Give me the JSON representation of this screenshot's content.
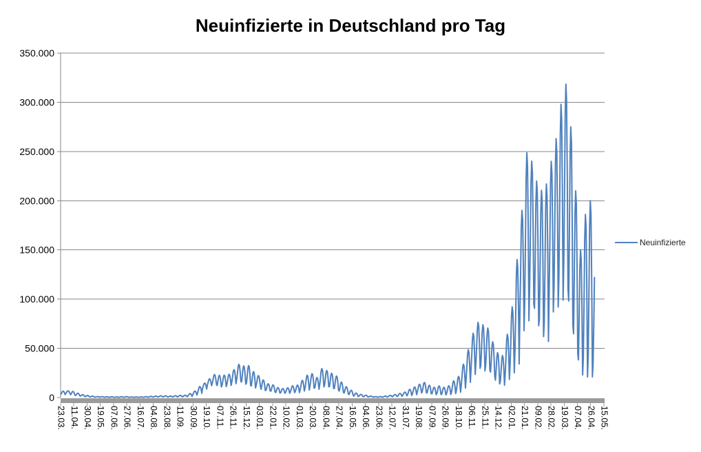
{
  "colors": {
    "background": "#FFFFFF",
    "series_line": "#4F81BD",
    "gridline": "#878787",
    "axis_line": "#878787",
    "axis_band": "#9B9B9B",
    "text": "#000000",
    "legend_text": "#1F1F1F"
  },
  "chart_data": {
    "type": "line",
    "title": "Neuinfizierte in Deutschland pro Tag",
    "legend": {
      "label": "Neuinfizierte",
      "position": "right"
    },
    "grid": "horizontal gridlines every 50.000, no plot border",
    "y_axis": {
      "min": 0,
      "max": 350000,
      "ticks": [
        {
          "value": 0,
          "label": "0"
        },
        {
          "value": 50000,
          "label": "50.000"
        },
        {
          "value": 100000,
          "label": "100.000"
        },
        {
          "value": 150000,
          "label": "150.000"
        },
        {
          "value": 200000,
          "label": "200.000"
        },
        {
          "value": 250000,
          "label": "250.000"
        },
        {
          "value": 300000,
          "label": "300.000"
        },
        {
          "value": 350000,
          "label": "350.000"
        }
      ]
    },
    "x_axis": {
      "tick_interval_days": 19,
      "tick_labels": [
        "23.03.",
        "11.04.",
        "30.04.",
        "19.05.",
        "07.06.",
        "27.06.",
        "16.07.",
        "04.08.",
        "23.08.",
        "11.09.",
        "30.09.",
        "19.10.",
        "07.11.",
        "26.11.",
        "15.12.",
        "03.01.",
        "22.01.",
        "10.02.",
        "01.03.",
        "20.03.",
        "08.04.",
        "27.04.",
        "16.05.",
        "04.06.",
        "23.06.",
        "12.07.",
        "31.07.",
        "19.08.",
        "07.09.",
        "26.09.",
        "18.10.",
        "06.11.",
        "25.11.",
        "14.12.",
        "02.01.",
        "21.01.",
        "09.02.",
        "28.02.",
        "19.03.",
        "07.04.",
        "26.04.",
        "15.05."
      ]
    },
    "series": [
      {
        "name": "Neuinfizierte",
        "color": "#4F81BD",
        "encoding": "weekly [high,low] envelope in thousands (weeks starting Mon 23.03.2020); daily value = low + (high-low) * weekday_weights[day_of_week], estimated from the plotted curve",
        "weekday_weights": [
          0.12,
          0.45,
          0.85,
          1.0,
          0.92,
          0.55,
          0.0
        ],
        "daily_points_drawn": 766,
        "weekly_high_low_thousands": [
          [
            6.5,
            3.0
          ],
          [
            6.8,
            3.9
          ],
          [
            6.2,
            2.5
          ],
          [
            4.4,
            1.8
          ],
          [
            2.9,
            1.3
          ],
          [
            2.1,
            0.7
          ],
          [
            1.4,
            0.5
          ],
          [
            1.0,
            0.4
          ],
          [
            0.9,
            0.35
          ],
          [
            0.75,
            0.3
          ],
          [
            0.8,
            0.3
          ],
          [
            0.6,
            0.2
          ],
          [
            0.8,
            0.3
          ],
          [
            0.9,
            0.3
          ],
          [
            0.6,
            0.25
          ],
          [
            0.55,
            0.2
          ],
          [
            0.65,
            0.25
          ],
          [
            0.9,
            0.3
          ],
          [
            1.2,
            0.4
          ],
          [
            1.5,
            0.5
          ],
          [
            1.8,
            0.6
          ],
          [
            1.8,
            0.6
          ],
          [
            1.6,
            0.5
          ],
          [
            1.9,
            0.6
          ],
          [
            2.2,
            0.7
          ],
          [
            2.4,
            0.8
          ],
          [
            4.0,
            1.2
          ],
          [
            6.6,
            2.5
          ],
          [
            11.2,
            4.3
          ],
          [
            14.7,
            8.7
          ],
          [
            19.1,
            12.1
          ],
          [
            23.4,
            13.3
          ],
          [
            22.6,
            10.8
          ],
          [
            22.8,
            11.1
          ],
          [
            23.7,
            12.3
          ],
          [
            28.4,
            14.1
          ],
          [
            33.8,
            16.4
          ],
          [
            32.2,
            13.6
          ],
          [
            32.5,
            12.3
          ],
          [
            26.4,
            9.8
          ],
          [
            22.3,
            11.3
          ],
          [
            17.9,
            7.1
          ],
          [
            14.0,
            6.7
          ],
          [
            12.9,
            5.6
          ],
          [
            10.2,
            4.5
          ],
          [
            9.1,
            4.4
          ],
          [
            9.9,
            4.4
          ],
          [
            11.9,
            5.0
          ],
          [
            12.7,
            5.1
          ],
          [
            17.5,
            6.6
          ],
          [
            22.7,
            7.7
          ],
          [
            24.3,
            9.5
          ],
          [
            20.4,
            8.5
          ],
          [
            29.4,
            10.8
          ],
          [
            27.5,
            10.9
          ],
          [
            24.7,
            9.2
          ],
          [
            21.9,
            7.5
          ],
          [
            15.7,
            5.4
          ],
          [
            11.0,
            3.7
          ],
          [
            7.4,
            2.4
          ],
          [
            4.6,
            1.1
          ],
          [
            3.2,
            1.0
          ],
          [
            2.4,
            0.7
          ],
          [
            1.5,
            0.5
          ],
          [
            0.9,
            0.3
          ],
          [
            1.0,
            0.3
          ],
          [
            1.5,
            0.5
          ],
          [
            2.2,
            0.7
          ],
          [
            3.1,
            1.0
          ],
          [
            4.2,
            1.2
          ],
          [
            5.6,
            1.8
          ],
          [
            8.4,
            2.1
          ],
          [
            10.8,
            3.0
          ],
          [
            13.5,
            4.7
          ],
          [
            15.4,
            4.7
          ],
          [
            12.5,
            3.9
          ],
          [
            10.5,
            3.0
          ],
          [
            11.8,
            3.0
          ],
          [
            10.4,
            2.7
          ],
          [
            12.0,
            3.1
          ],
          [
            17.0,
            4.0
          ],
          [
            21.5,
            5.5
          ],
          [
            33.9,
            9.7
          ],
          [
            48.6,
            15.5
          ],
          [
            65.4,
            23.6
          ],
          [
            76.4,
            29.7
          ],
          [
            74.0,
            27.0
          ],
          [
            70.6,
            27.8
          ],
          [
            56.7,
            21.7
          ],
          [
            45.7,
            13.9
          ],
          [
            42.8,
            12.5
          ],
          [
            64.3,
            18.5
          ],
          [
            92.2,
            25.2
          ],
          [
            140.2,
            34.1
          ],
          [
            190.1,
            68.0
          ],
          [
            248.8,
            78.0
          ],
          [
            240.2,
            95.0
          ],
          [
            220.0,
            73.0
          ],
          [
            210.5,
            62.0
          ],
          [
            217.0,
            57.0
          ],
          [
            240.0,
            87.0
          ],
          [
            263.0,
            92.0
          ],
          [
            298.0,
            99.0
          ],
          [
            318.4,
            111.0
          ],
          [
            275.0,
            74.0
          ],
          [
            210.0,
            45.0
          ],
          [
            150.0,
            23.0
          ],
          [
            186.0,
            21.0
          ],
          [
            200.0,
            21.0
          ],
          [
            140.0,
            20.0
          ]
        ]
      }
    ]
  }
}
